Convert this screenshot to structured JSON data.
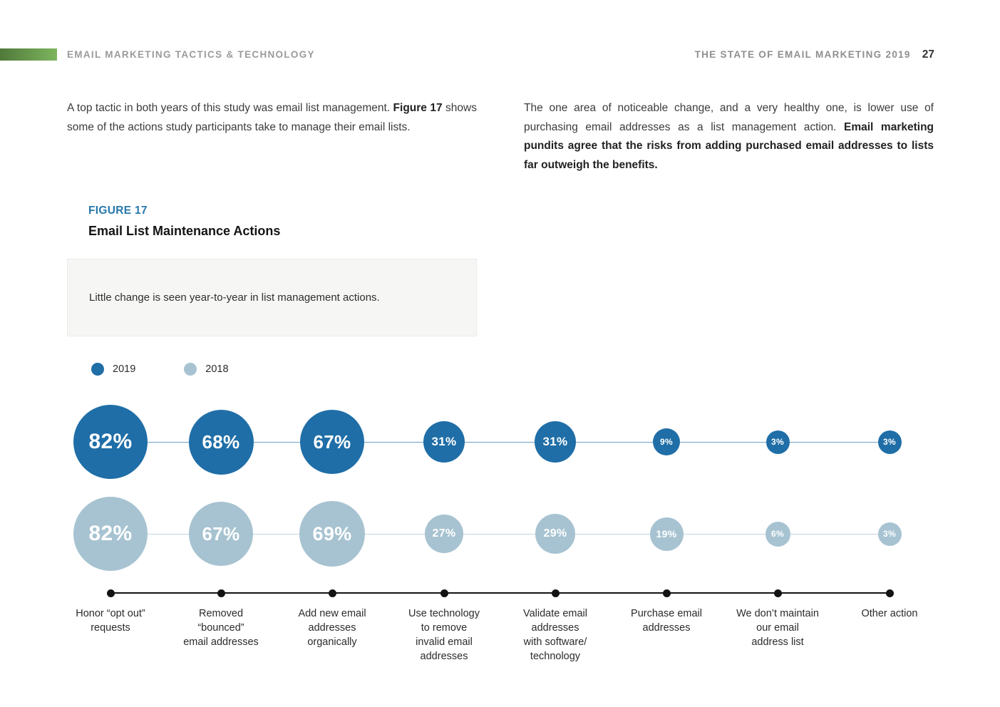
{
  "header": {
    "section_title": "EMAIL MARKETING TACTICS & TECHNOLOGY",
    "report_title": "THE STATE OF EMAIL MARKETING 2019",
    "page_number": "27"
  },
  "intro": {
    "left": {
      "text_1": "A top tactic in both years of this study was email list management. ",
      "bold_1": "Figure 17",
      "text_2": " shows some of the actions study participants take to manage their email lists."
    },
    "right": {
      "text_1": "The one area of noticeable change, and a very healthy one, is lower use of purchasing email addresses as a list management action. ",
      "bold_1": "Email marketing pundits agree that the risks from adding purchased email addresses to lists far outweigh the benefits."
    }
  },
  "figure": {
    "label": "FIGURE 17",
    "title": "Email List Maintenance Actions",
    "callout": "Little change is seen year-to-year in list management actions."
  },
  "chart_data": {
    "type": "bubble",
    "title": "Email List Maintenance Actions",
    "layout": "two horizontal bubble rows (one per year) over a bottom category axis; bubble area scales with value",
    "legend_position": "top-left",
    "value_suffix": "%",
    "categories": [
      "Honor “opt out”\nrequests",
      "Removed\n“bounced”\nemail addresses",
      "Add new email\naddresses\norganically",
      "Use technology\nto remove\ninvalid email\naddresses",
      "Validate email\naddresses\nwith software/\ntechnology",
      "Purchase email\naddresses",
      "We don’t maintain\nour email\naddress list",
      "Other action"
    ],
    "series": [
      {
        "name": "2019",
        "color": "#1f6ea7",
        "connector_color": "#6f9fc4",
        "values": [
          82,
          68,
          67,
          31,
          31,
          9,
          3,
          3
        ]
      },
      {
        "name": "2018",
        "color": "#a7c3d1",
        "connector_color": "#c3d3dc",
        "values": [
          82,
          67,
          69,
          27,
          29,
          19,
          6,
          3
        ]
      }
    ]
  },
  "colors": {
    "accent_blue": "#1f6ea7",
    "muted_blue": "#a7c3d1",
    "figure_label_blue": "#2778ac",
    "header_gray": "#9b9b9b",
    "green_bar_start": "#50793a",
    "green_bar_end": "#7db55e",
    "axis_black": "#131313"
  }
}
